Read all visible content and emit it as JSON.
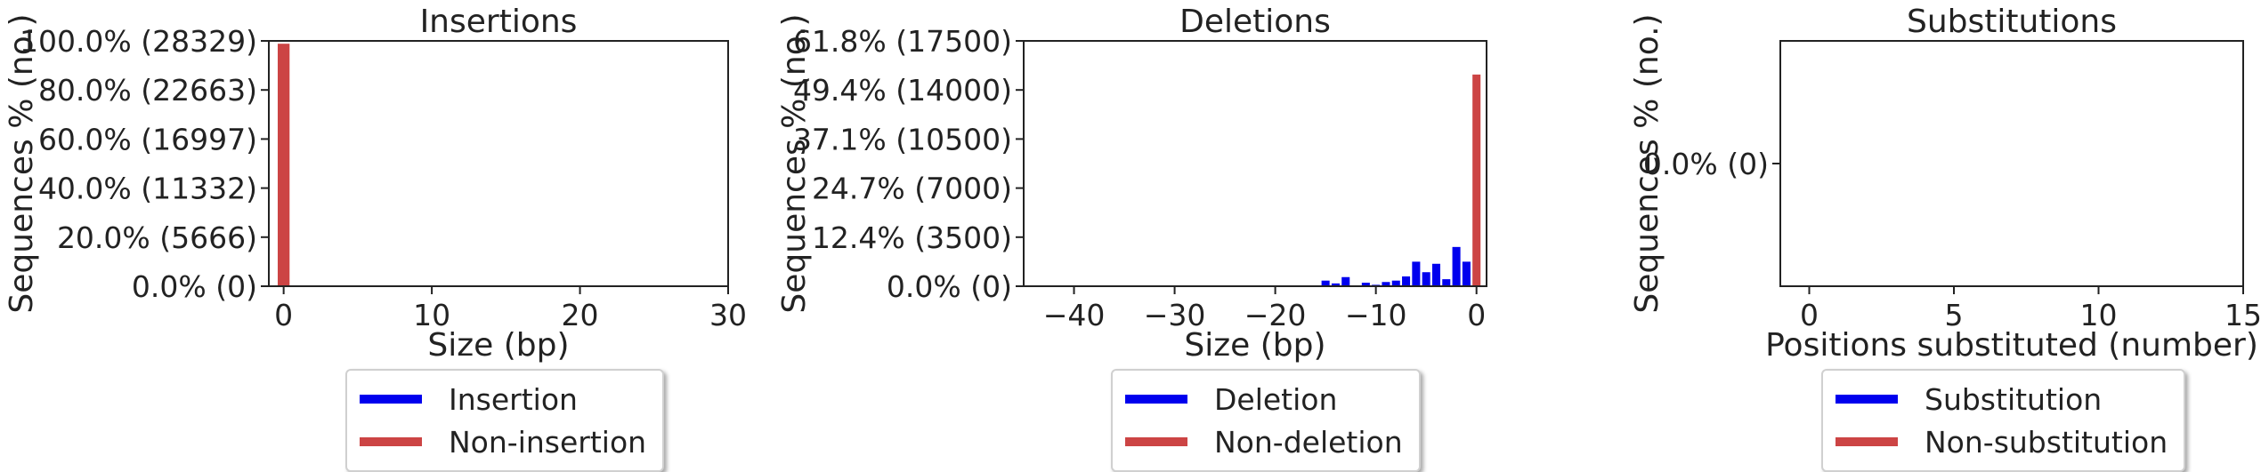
{
  "colors": {
    "modified": "#0000ee",
    "unmodified": "#cc4444",
    "axis": "#222222",
    "text": "#222222"
  },
  "chart_data": [
    {
      "type": "bar",
      "title": "Insertions",
      "xlabel": "Size (bp)",
      "ylabel": "Sequences % (no.)",
      "xlim": [
        -1,
        30
      ],
      "ylim": [
        0,
        28329
      ],
      "xticks": [
        0,
        10,
        20,
        30
      ],
      "yticks": [
        {
          "value": 0,
          "label": "0.0% (0)"
        },
        {
          "value": 5666,
          "label": "20.0% (5666)"
        },
        {
          "value": 11332,
          "label": "40.0% (11332)"
        },
        {
          "value": 16997,
          "label": "60.0% (16997)"
        },
        {
          "value": 22663,
          "label": "80.0% (22663)"
        },
        {
          "value": 28329,
          "label": "100.0% (28329)"
        }
      ],
      "series": [
        {
          "name": "Insertion",
          "color": "#0000ee",
          "points": []
        },
        {
          "name": "Non-insertion",
          "color": "#cc4444",
          "points": [
            {
              "x": 0,
              "y": 28000
            }
          ]
        }
      ],
      "legend": [
        "Insertion",
        "Non-insertion"
      ],
      "legend_position": "below"
    },
    {
      "type": "bar",
      "title": "Deletions",
      "xlabel": "Size (bp)",
      "ylabel": "Sequences % (no.)",
      "xlim": [
        -45,
        1
      ],
      "ylim": [
        0,
        17500
      ],
      "xticks": [
        -40,
        -30,
        -20,
        -10,
        0
      ],
      "yticks": [
        {
          "value": 0,
          "label": "0.0% (0)"
        },
        {
          "value": 3500,
          "label": "12.4% (3500)"
        },
        {
          "value": 7000,
          "label": "24.7% (7000)"
        },
        {
          "value": 10500,
          "label": "37.1% (10500)"
        },
        {
          "value": 14000,
          "label": "49.4% (14000)"
        },
        {
          "value": 17500,
          "label": "61.8% (17500)"
        }
      ],
      "series": [
        {
          "name": "Deletion",
          "color": "#0000ee",
          "points": [
            {
              "x": -15,
              "y": 400
            },
            {
              "x": -14,
              "y": 200
            },
            {
              "x": -13,
              "y": 650
            },
            {
              "x": -11,
              "y": 250
            },
            {
              "x": -10,
              "y": 100
            },
            {
              "x": -9,
              "y": 300
            },
            {
              "x": -8,
              "y": 400
            },
            {
              "x": -7,
              "y": 700
            },
            {
              "x": -6,
              "y": 1750
            },
            {
              "x": -5,
              "y": 1000
            },
            {
              "x": -4,
              "y": 1600
            },
            {
              "x": -3,
              "y": 500
            },
            {
              "x": -2,
              "y": 2800
            },
            {
              "x": -1,
              "y": 1750
            }
          ]
        },
        {
          "name": "Non-deletion",
          "color": "#cc4444",
          "points": [
            {
              "x": 0,
              "y": 15100
            }
          ]
        }
      ],
      "legend": [
        "Deletion",
        "Non-deletion"
      ],
      "legend_position": "below"
    },
    {
      "type": "bar",
      "title": "Substitutions",
      "xlabel": "Positions substituted (number)",
      "ylabel": "Sequences % (no.)",
      "xlim": [
        -1,
        15
      ],
      "ylim": [
        -1,
        1
      ],
      "xticks": [
        0,
        5,
        10,
        15
      ],
      "yticks": [
        {
          "value": 0,
          "label": "0.0% (0)"
        }
      ],
      "series": [
        {
          "name": "Substitution",
          "color": "#0000ee",
          "points": []
        },
        {
          "name": "Non-substitution",
          "color": "#cc4444",
          "points": []
        }
      ],
      "legend": [
        "Substitution",
        "Non-substitution"
      ],
      "legend_position": "below"
    }
  ]
}
